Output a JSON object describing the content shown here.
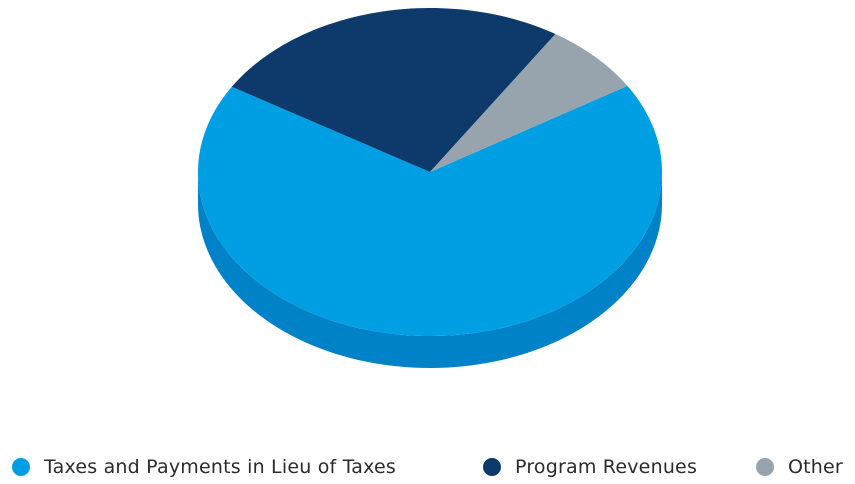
{
  "chart_data": {
    "type": "pie",
    "title": "",
    "style": "3d",
    "legend_position": "bottom",
    "slices": [
      {
        "label": "Taxes and Payments in Lieu of Taxes",
        "value": 67.5,
        "color": "#009fe3",
        "side_color": "#0082c8"
      },
      {
        "label": "Program Revenues",
        "value": 25.4,
        "color": "#0d3a6b",
        "side_color": "#072852"
      },
      {
        "label": "Other",
        "value": 7.1,
        "color": "#97a3ad",
        "side_color": "#7d8a95"
      }
    ]
  }
}
